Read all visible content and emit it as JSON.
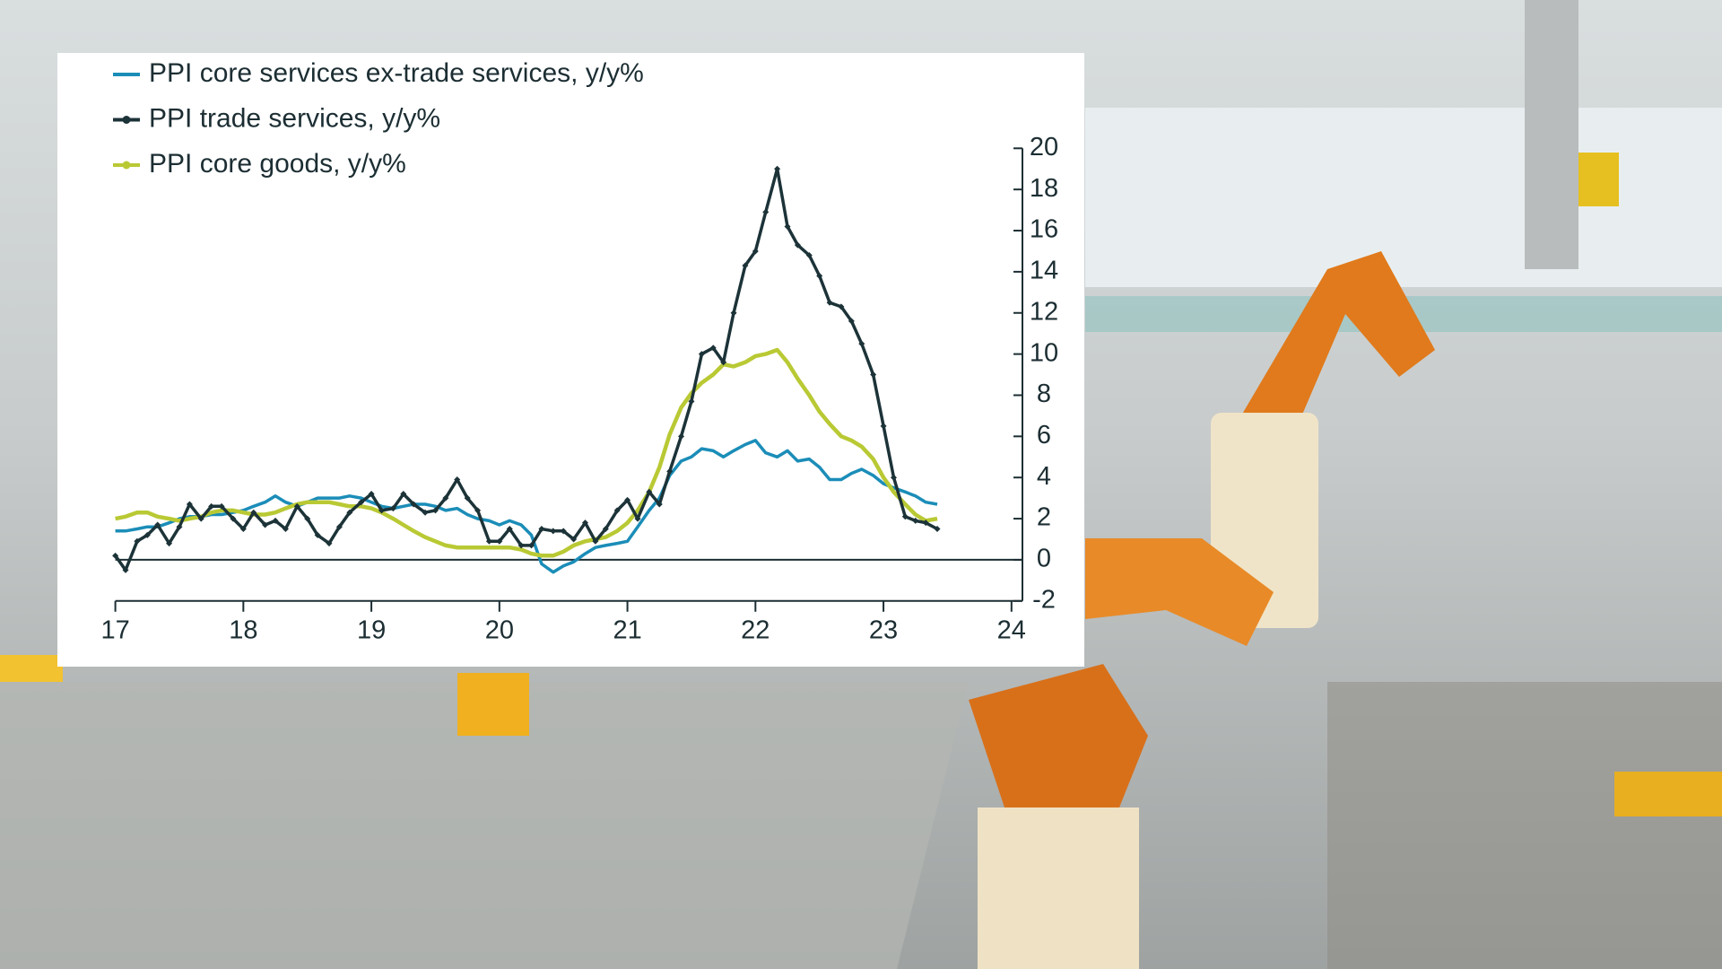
{
  "chart_data": {
    "type": "line",
    "x": [
      17,
      17.08,
      17.17,
      17.25,
      17.33,
      17.42,
      17.5,
      17.58,
      17.67,
      17.75,
      17.83,
      17.92,
      18,
      18.08,
      18.17,
      18.25,
      18.33,
      18.42,
      18.5,
      18.58,
      18.67,
      18.75,
      18.83,
      18.92,
      19,
      19.08,
      19.17,
      19.25,
      19.33,
      19.42,
      19.5,
      19.58,
      19.67,
      19.75,
      19.83,
      19.92,
      20,
      20.08,
      20.17,
      20.25,
      20.33,
      20.42,
      20.5,
      20.58,
      20.67,
      20.75,
      20.83,
      20.92,
      21,
      21.08,
      21.17,
      21.25,
      21.33,
      21.42,
      21.5,
      21.58,
      21.67,
      21.75,
      21.83,
      21.92,
      22,
      22.08,
      22.17,
      22.25,
      22.33,
      22.42,
      22.5,
      22.58,
      22.67,
      22.75,
      22.83,
      22.92,
      23,
      23.08,
      23.17,
      23.25,
      23.33,
      23.42
    ],
    "series": [
      {
        "name": "PPI core services ex-trade services, y/y%",
        "color": "#1b8db8",
        "marker": false,
        "values": [
          1.4,
          1.4,
          1.5,
          1.6,
          1.6,
          1.8,
          2.0,
          2.1,
          2.1,
          2.2,
          2.2,
          2.3,
          2.4,
          2.6,
          2.8,
          3.1,
          2.8,
          2.6,
          2.8,
          3.0,
          3.0,
          3.0,
          3.1,
          3.0,
          2.8,
          2.6,
          2.5,
          2.6,
          2.7,
          2.7,
          2.6,
          2.4,
          2.5,
          2.2,
          2.0,
          1.9,
          1.7,
          1.9,
          1.7,
          1.2,
          -0.2,
          -0.6,
          -0.3,
          -0.1,
          0.3,
          0.6,
          0.7,
          0.8,
          0.9,
          1.6,
          2.4,
          3.0,
          4.1,
          4.8,
          5.0,
          5.4,
          5.3,
          5.0,
          5.3,
          5.6,
          5.8,
          5.2,
          5.0,
          5.3,
          4.8,
          4.9,
          4.5,
          3.9,
          3.9,
          4.2,
          4.4,
          4.1,
          3.7,
          3.5,
          3.3,
          3.1,
          2.8,
          2.7
        ]
      },
      {
        "name": "PPI trade services, y/y%",
        "color": "#1c3338",
        "marker": true,
        "values": [
          0.2,
          -0.5,
          0.9,
          1.2,
          1.7,
          0.8,
          1.6,
          2.7,
          2.0,
          2.6,
          2.6,
          2.0,
          1.5,
          2.3,
          1.7,
          1.9,
          1.5,
          2.6,
          2.0,
          1.2,
          0.8,
          1.6,
          2.3,
          2.8,
          3.2,
          2.4,
          2.5,
          3.2,
          2.7,
          2.3,
          2.4,
          3.0,
          3.9,
          3.0,
          2.4,
          0.9,
          0.9,
          1.5,
          0.7,
          0.7,
          1.5,
          1.4,
          1.4,
          1.0,
          1.8,
          0.9,
          1.5,
          2.4,
          2.9,
          2.0,
          3.3,
          2.7,
          4.3,
          6.0,
          7.7,
          10.0,
          10.3,
          9.6,
          12.0,
          14.3,
          15.0,
          16.9,
          19.0,
          16.2,
          15.3,
          14.8,
          13.8,
          12.5,
          12.3,
          11.6,
          10.5,
          9.0,
          6.5,
          4.0,
          2.1,
          1.9,
          1.8,
          1.5
        ]
      },
      {
        "name": "PPI core goods, y/y%",
        "color": "#b9c934",
        "marker": false,
        "values": [
          2.0,
          2.1,
          2.3,
          2.3,
          2.1,
          2.0,
          1.9,
          2.0,
          2.1,
          2.3,
          2.4,
          2.4,
          2.3,
          2.2,
          2.2,
          2.3,
          2.5,
          2.7,
          2.8,
          2.8,
          2.8,
          2.7,
          2.6,
          2.6,
          2.5,
          2.3,
          2.0,
          1.7,
          1.4,
          1.1,
          0.9,
          0.7,
          0.6,
          0.6,
          0.6,
          0.6,
          0.6,
          0.6,
          0.5,
          0.3,
          0.2,
          0.2,
          0.4,
          0.7,
          0.9,
          1.0,
          1.1,
          1.4,
          1.8,
          2.4,
          3.3,
          4.5,
          6.1,
          7.4,
          8.1,
          8.6,
          9.0,
          9.5,
          9.4,
          9.6,
          9.9,
          10.0,
          10.2,
          9.6,
          8.8,
          8.0,
          7.2,
          6.6,
          6.0,
          5.8,
          5.5,
          4.9,
          4.0,
          3.3,
          2.7,
          2.2,
          1.9,
          2.0
        ]
      }
    ],
    "xlim": [
      17,
      24
    ],
    "xticks": [
      17,
      18,
      19,
      20,
      21,
      22,
      23,
      24
    ],
    "ylim": [
      -2,
      20
    ],
    "yticks": [
      -2,
      0,
      2,
      4,
      6,
      8,
      10,
      12,
      14,
      16,
      18,
      20
    ],
    "y_axis_side": "right",
    "legend": "top-left",
    "grid": false
  }
}
